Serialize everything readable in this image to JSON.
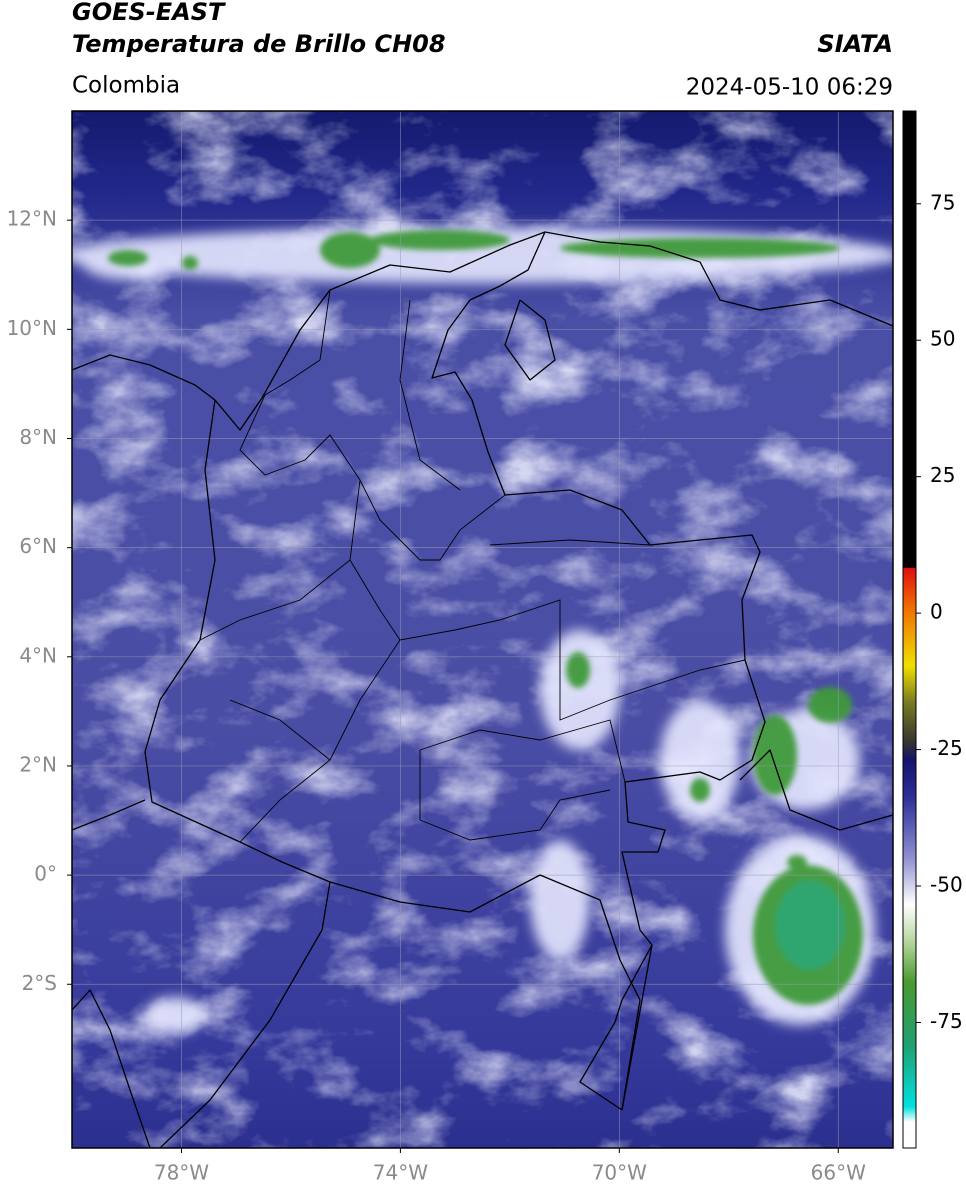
{
  "header": {
    "title": "GOES-EAST",
    "subtitle": "Temperatura de Brillo CH08",
    "region": "Colombia",
    "source": "SIATA",
    "timestamp": "2024-05-10 06:29"
  },
  "map": {
    "lonlim": [
      -80,
      -65
    ],
    "latlim": [
      -5,
      14
    ],
    "lon_ticks": [
      {
        "value": -78,
        "label": "78°W"
      },
      {
        "value": -74,
        "label": "74°W"
      },
      {
        "value": -70,
        "label": "70°W"
      },
      {
        "value": -66,
        "label": "66°W"
      }
    ],
    "lat_ticks": [
      {
        "value": 12,
        "label": "12°N"
      },
      {
        "value": 10,
        "label": "10°N"
      },
      {
        "value": 8,
        "label": "8°N"
      },
      {
        "value": 6,
        "label": "6°N"
      },
      {
        "value": 4,
        "label": "4°N"
      },
      {
        "value": 2,
        "label": "2°N"
      },
      {
        "value": 0,
        "label": "0°"
      },
      {
        "value": -2,
        "label": "2°S"
      }
    ]
  },
  "colorbar": {
    "lim": [
      -98,
      92
    ],
    "ticks": [
      75,
      50,
      25,
      0,
      -25,
      -50,
      -75
    ]
  }
}
